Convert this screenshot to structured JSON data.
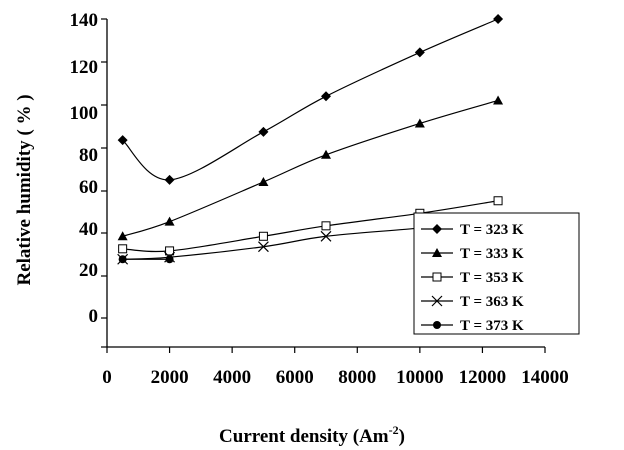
{
  "chart_data": {
    "type": "line",
    "xlabel_main": "Current density (Am",
    "xlabel_sup": "-2",
    "xlabel_close": ")",
    "ylabel": "Relative humidity ( % )",
    "xlim": [
      0,
      14000
    ],
    "ylim_visual": [
      -15,
      142
    ],
    "x_ticks": [
      0,
      2000,
      4000,
      6000,
      8000,
      10000,
      12000,
      14000
    ],
    "y_tick_labels": [
      "140",
      "120",
      "100",
      "80",
      "60",
      "40",
      "20",
      "0"
    ],
    "grid": false,
    "legend_position": "bottom-right",
    "series": [
      {
        "name": "T = 323 K",
        "marker": "diamond",
        "x": [
          500,
          2000,
          5000,
          7000,
          10000,
          12500
        ],
        "y": [
          84,
          65,
          88,
          105,
          126,
          142
        ]
      },
      {
        "name": "T = 333 K",
        "marker": "triangle",
        "x": [
          500,
          2000,
          5000,
          7000,
          10000,
          12500
        ],
        "y": [
          38,
          45,
          64,
          77,
          92,
          103
        ]
      },
      {
        "name": "T = 353 K",
        "marker": "square-open",
        "x": [
          500,
          2000,
          5000,
          7000,
          10000,
          12500
        ],
        "y": [
          32,
          31,
          38,
          43,
          49,
          55
        ]
      },
      {
        "name": "T = 363 K",
        "marker": "x",
        "x": [
          500,
          2000,
          5000,
          7000,
          10000,
          11500
        ],
        "y": [
          27,
          28,
          33,
          38,
          42,
          45
        ]
      },
      {
        "name": "T = 373 K",
        "marker": "circle",
        "x": [
          500,
          2000
        ],
        "y": [
          27,
          27
        ]
      }
    ]
  }
}
